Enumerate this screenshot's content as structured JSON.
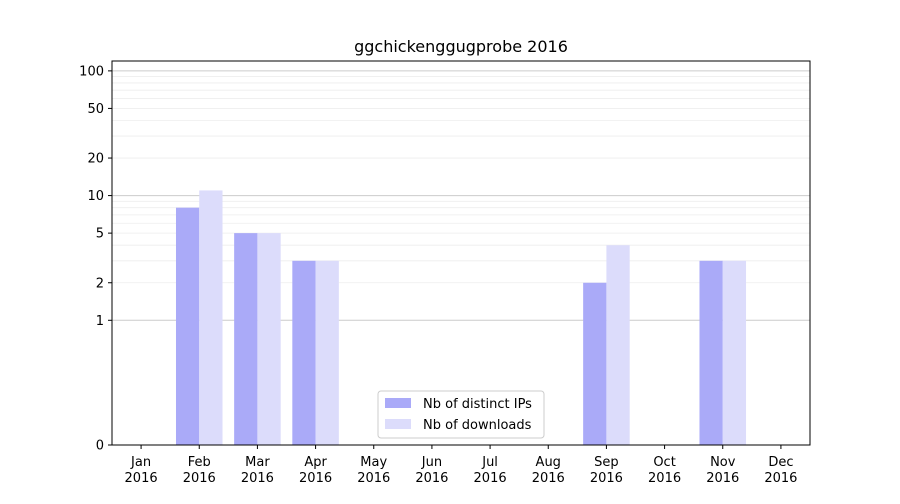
{
  "chart_data": {
    "type": "bar",
    "title": "ggchickenggugprobe 2016",
    "xlabel": "",
    "ylabel": "",
    "yscale": "symlog",
    "ylim": [
      0,
      120
    ],
    "yticks": [
      0,
      1,
      2,
      5,
      10,
      20,
      50,
      100
    ],
    "ytick_labels": [
      "0",
      "1",
      "2",
      "5",
      "10",
      "20",
      "50",
      "100"
    ],
    "categories": [
      [
        "Jan",
        "2016"
      ],
      [
        "Feb",
        "2016"
      ],
      [
        "Mar",
        "2016"
      ],
      [
        "Apr",
        "2016"
      ],
      [
        "May",
        "2016"
      ],
      [
        "Jun",
        "2016"
      ],
      [
        "Jul",
        "2016"
      ],
      [
        "Aug",
        "2016"
      ],
      [
        "Sep",
        "2016"
      ],
      [
        "Oct",
        "2016"
      ],
      [
        "Nov",
        "2016"
      ],
      [
        "Dec",
        "2016"
      ]
    ],
    "series": [
      {
        "name": "Nb of distinct IPs",
        "color": "#aaaaf8",
        "values": [
          0,
          8,
          5,
          3,
          0,
          0,
          0,
          0,
          2,
          0,
          3,
          0
        ]
      },
      {
        "name": "Nb of downloads",
        "color": "#dcdcfb",
        "values": [
          0,
          11,
          5,
          3,
          0,
          0,
          0,
          0,
          4,
          0,
          3,
          0
        ]
      }
    ],
    "grid": true,
    "legend_position": "bottom-center"
  }
}
